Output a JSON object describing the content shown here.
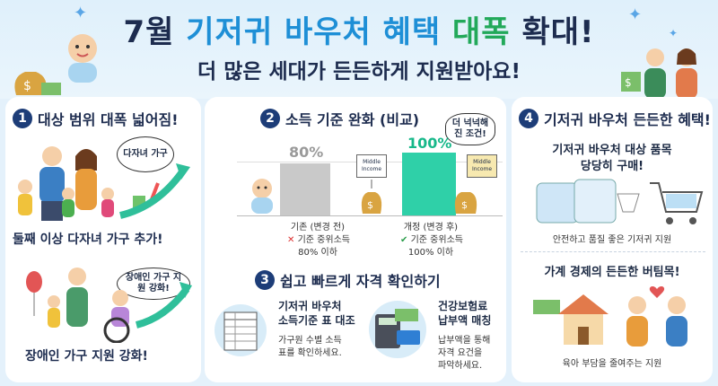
{
  "header": {
    "title_part1": "7월 ",
    "title_part2": "기저귀 바우처 혜택 ",
    "title_part3": "대폭 ",
    "title_part4": "확대!",
    "subtitle": "더 많은 세대가 든든하게 지원받아요!"
  },
  "section1": {
    "number": "1",
    "title": "대상 범위 대폭 넓어짐!",
    "bubble": "다자녀 가구",
    "caption": "둘째 이상 다자녀 가구 추가!"
  },
  "section1b": {
    "bubble": "장애인 가구 지원 강화!",
    "caption": "장애인 가구 지원 강화!"
  },
  "section2": {
    "number": "2",
    "title": "소득 기준 완화 (비교)",
    "callout": "더 넉넉해진 조건!",
    "money_label": "Middle Income",
    "before": {
      "value_label": "80%",
      "label": "기존 (변경 전)",
      "line1": "기준 중위소득",
      "line2": "80% 이하"
    },
    "after": {
      "value_label": "100%",
      "label": "개정 (변경 후)",
      "line1": "기준 중위소득",
      "line2": "100% 이하"
    }
  },
  "section3": {
    "number": "3",
    "title": "쉽고 빠르게 자격 확인하기",
    "item1": {
      "title_line1": "기저귀 바우처",
      "title_line2": "소득기준 표 대조",
      "desc_line1": "가구원 수별 소득",
      "desc_line2": "표를 확인하세요."
    },
    "item2": {
      "title_line1": "건강보험료",
      "title_line2": "납부액 매칭",
      "desc_line1": "납부액을 통해",
      "desc_line2": "자격 요건을",
      "desc_line3": "파악하세요."
    }
  },
  "section4": {
    "number": "4",
    "title": "기저귀 바우처 든든한 혜택!",
    "sub_line1": "기저귀 바우처 대상 품목",
    "sub_line2": "당당히 구매!",
    "caption1": "안전하고 품질 좋은 기저귀 지원",
    "title2": "가계 경제의 든든한 버팀목!",
    "caption2": "육아 부담을 줄여주는 지원"
  },
  "colors": {
    "navy": "#1d2c4f",
    "blue": "#1e8fd6",
    "green": "#22a95a",
    "gray_bar": "#c9c9c9",
    "teal_bar": "#2fd0a8"
  }
}
